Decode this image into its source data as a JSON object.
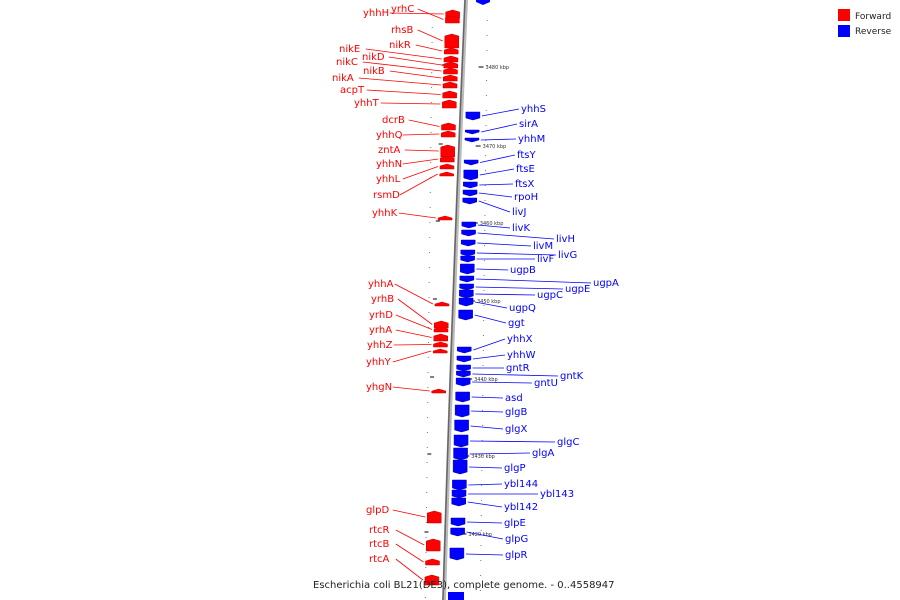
{
  "caption": "Escherichia coli BL21(DE3), complete genome. - 0..4558947",
  "legend": [
    {
      "label": "Forward",
      "color": "#ff0000"
    },
    {
      "label": "Reverse",
      "color": "#0000ff"
    }
  ],
  "colors": {
    "forward": "#ff0000",
    "reverse": "#0000ff",
    "backbone": "#888888"
  },
  "ticks": [
    "3480 kbp",
    "3470 kbp",
    "3460 kbp",
    "3450 kbp",
    "3440 kbp",
    "3430 kbp",
    "3420 kbp"
  ],
  "forward_genes": [
    "yhhH",
    "yrhC",
    "rhsB",
    "nikR",
    "nikE",
    "nikD",
    "nikC",
    "nikB",
    "nikA",
    "acpT",
    "yhhT",
    "dcrB",
    "yhhQ",
    "zntA",
    "yhhN",
    "yhhL",
    "rsmD",
    "yhhK",
    "yhhA",
    "yrhB",
    "yrhD",
    "yrhA",
    "yhhZ",
    "yhhY",
    "yhgN",
    "glpD",
    "rtcR",
    "rtcB",
    "rtcA"
  ],
  "reverse_genes": [
    "yhhS",
    "sirA",
    "yhhM",
    "ftsY",
    "ftsE",
    "ftsX",
    "rpoH",
    "livJ",
    "livK",
    "livH",
    "livM",
    "livG",
    "livF",
    "ugpB",
    "ugpA",
    "ugpE",
    "ugpC",
    "ugpQ",
    "ggt",
    "yhhX",
    "yhhW",
    "gntR",
    "gntK",
    "gntU",
    "asd",
    "glgB",
    "glgX",
    "glgC",
    "glgA",
    "glgP",
    "ybl144",
    "ybl143",
    "ybl142",
    "glpE",
    "glpG",
    "glpR"
  ]
}
